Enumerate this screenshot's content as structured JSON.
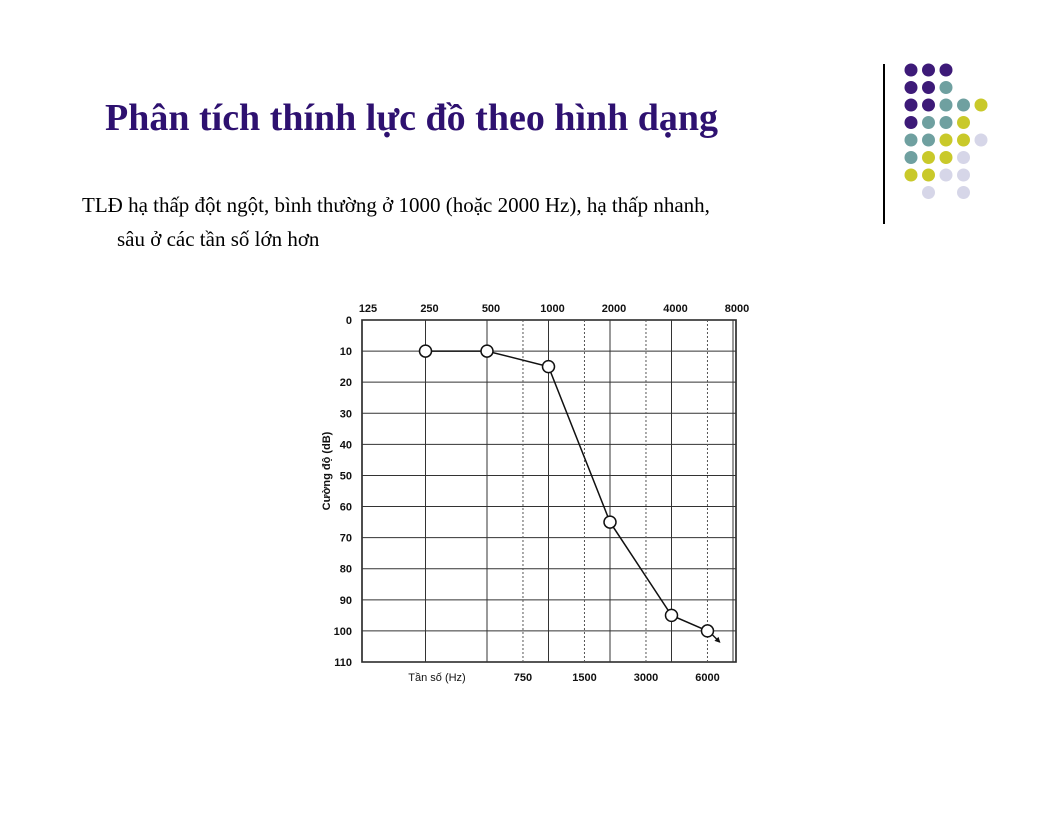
{
  "slide": {
    "title": "Phân tích thính lực đồ theo hình dạng",
    "bullet_line1": "TLĐ hạ thấp đột ngột, bình thường ở 1000 (hoặc 2000 Hz), hạ thấp nhanh,",
    "bullet_line2": "sâu ở các tần số lớn hơn"
  },
  "decoration": {
    "dot_colors": {
      "purple": "#3d1a78",
      "teal": "#6fa0a0",
      "yellow": "#c9c92a",
      "lavender": "#d6d6e8"
    }
  },
  "chart_data": {
    "type": "line",
    "xlabel": "Tần số (Hz)",
    "ylabel": "Cường độ (dB)",
    "x_top_ticks": [
      "125",
      "250",
      "500",
      "1000",
      "2000",
      "4000",
      "8000"
    ],
    "x_bottom_ticks": [
      "750",
      "1500",
      "3000",
      "6000"
    ],
    "y_ticks": [
      "0",
      "10",
      "20",
      "30",
      "40",
      "50",
      "60",
      "70",
      "80",
      "90",
      "100",
      "110"
    ],
    "ylim": [
      0,
      110
    ],
    "y_inverted": true,
    "grid": true,
    "series": [
      {
        "x": [
          "250",
          "500",
          "1000",
          "2000",
          "4000",
          "6000"
        ],
        "values": [
          10,
          10,
          15,
          65,
          95,
          100
        ]
      }
    ],
    "last_point_arrow": true
  }
}
